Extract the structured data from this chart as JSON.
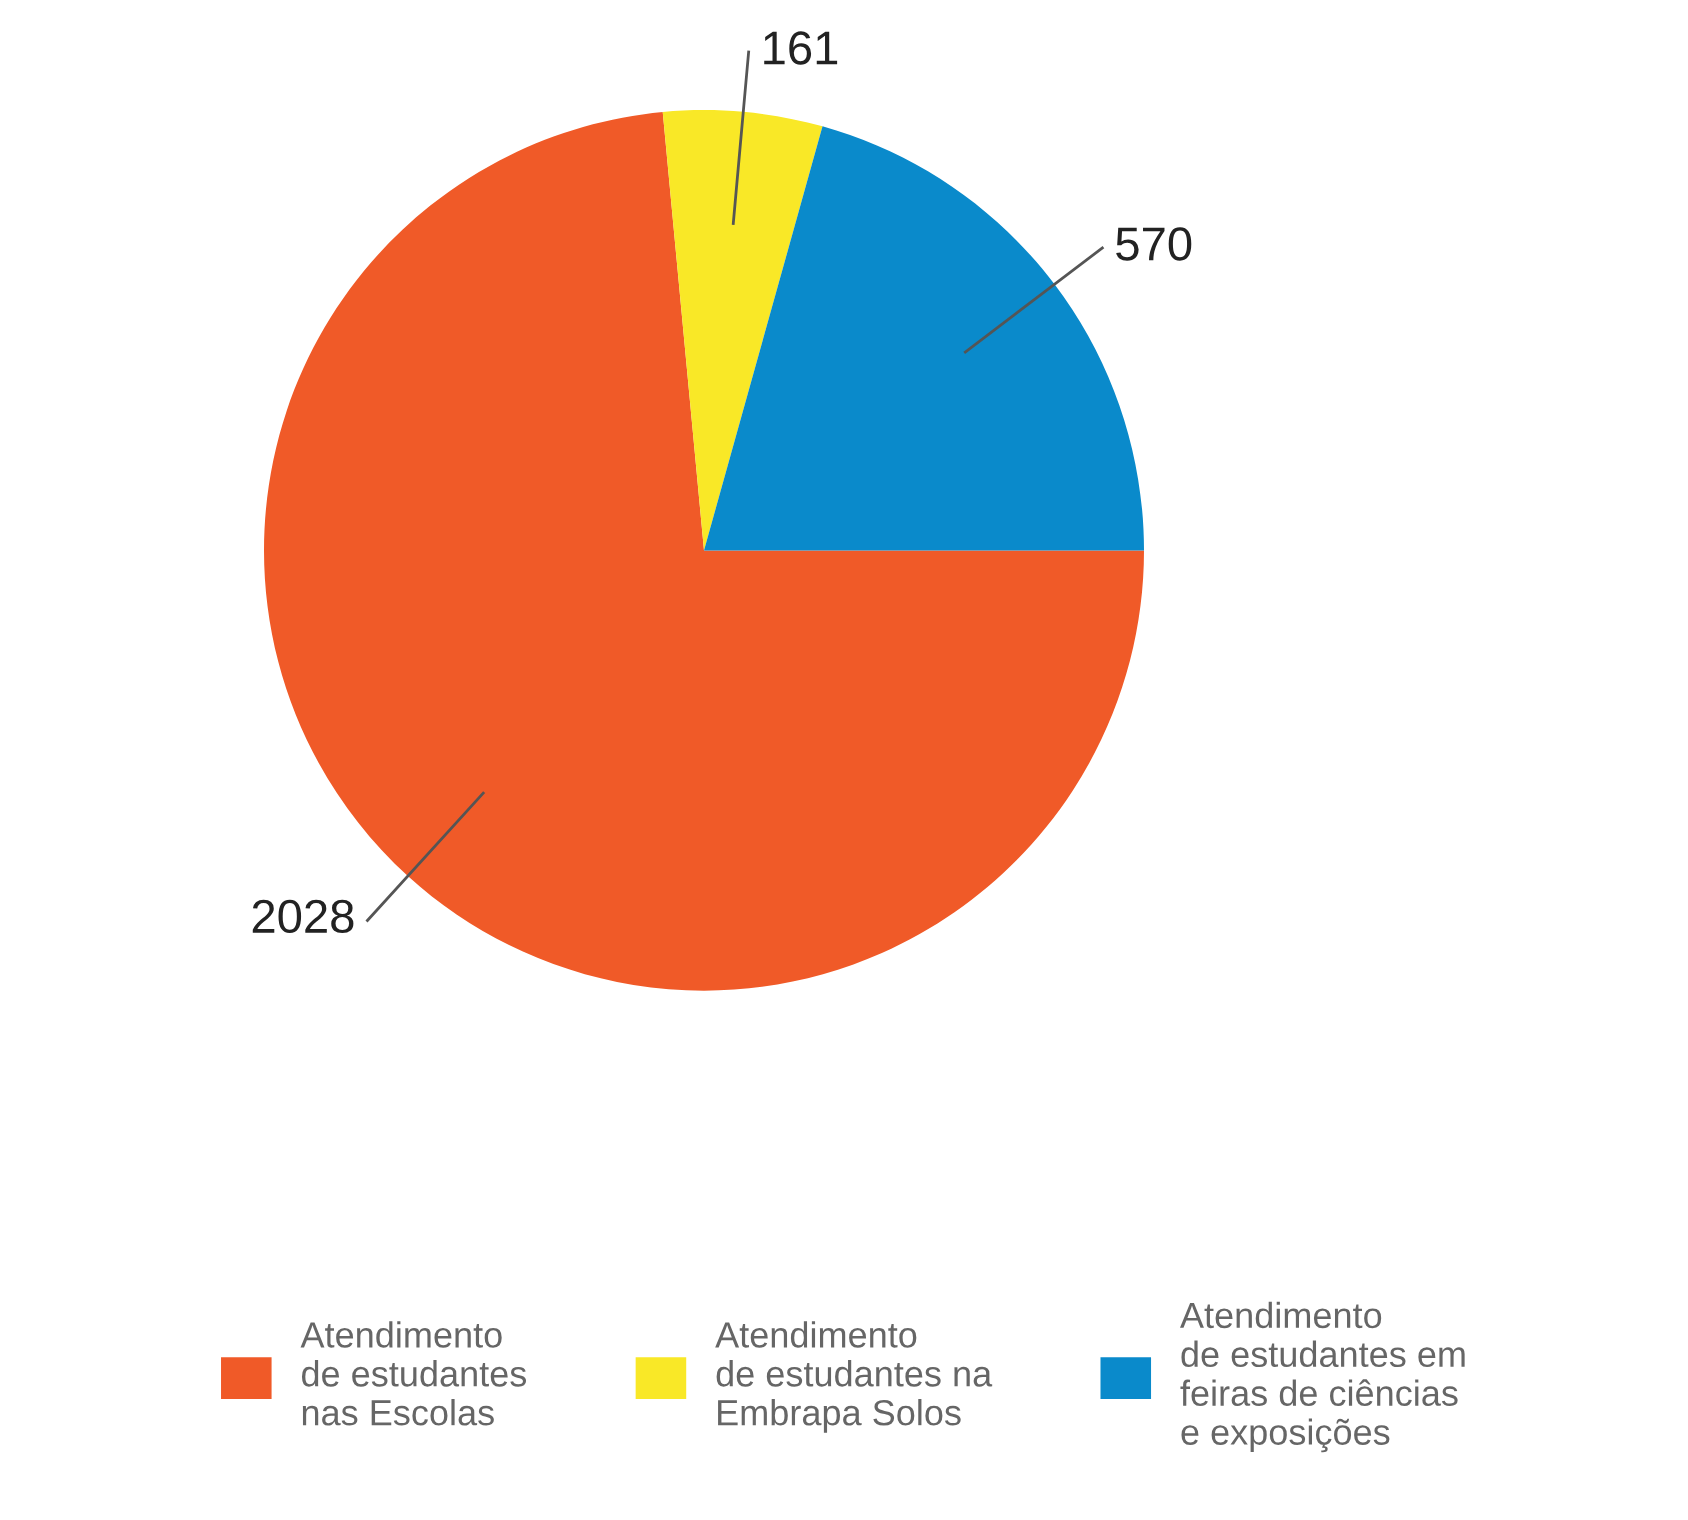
{
  "chart_data": {
    "type": "pie",
    "categories": [
      "Atendimento\nde estudantes\nnas Escolas",
      "Atendimento\nde estudantes na\nEmbrapa Solos",
      "Atendimento\nde estudantes em\nfeiras de ciências\ne exposições"
    ],
    "values": [
      2028,
      161,
      570
    ],
    "colors": [
      "#f05a28",
      "#f9e827",
      "#0a8acb"
    ],
    "data_labels": true,
    "legend": "bottom"
  }
}
